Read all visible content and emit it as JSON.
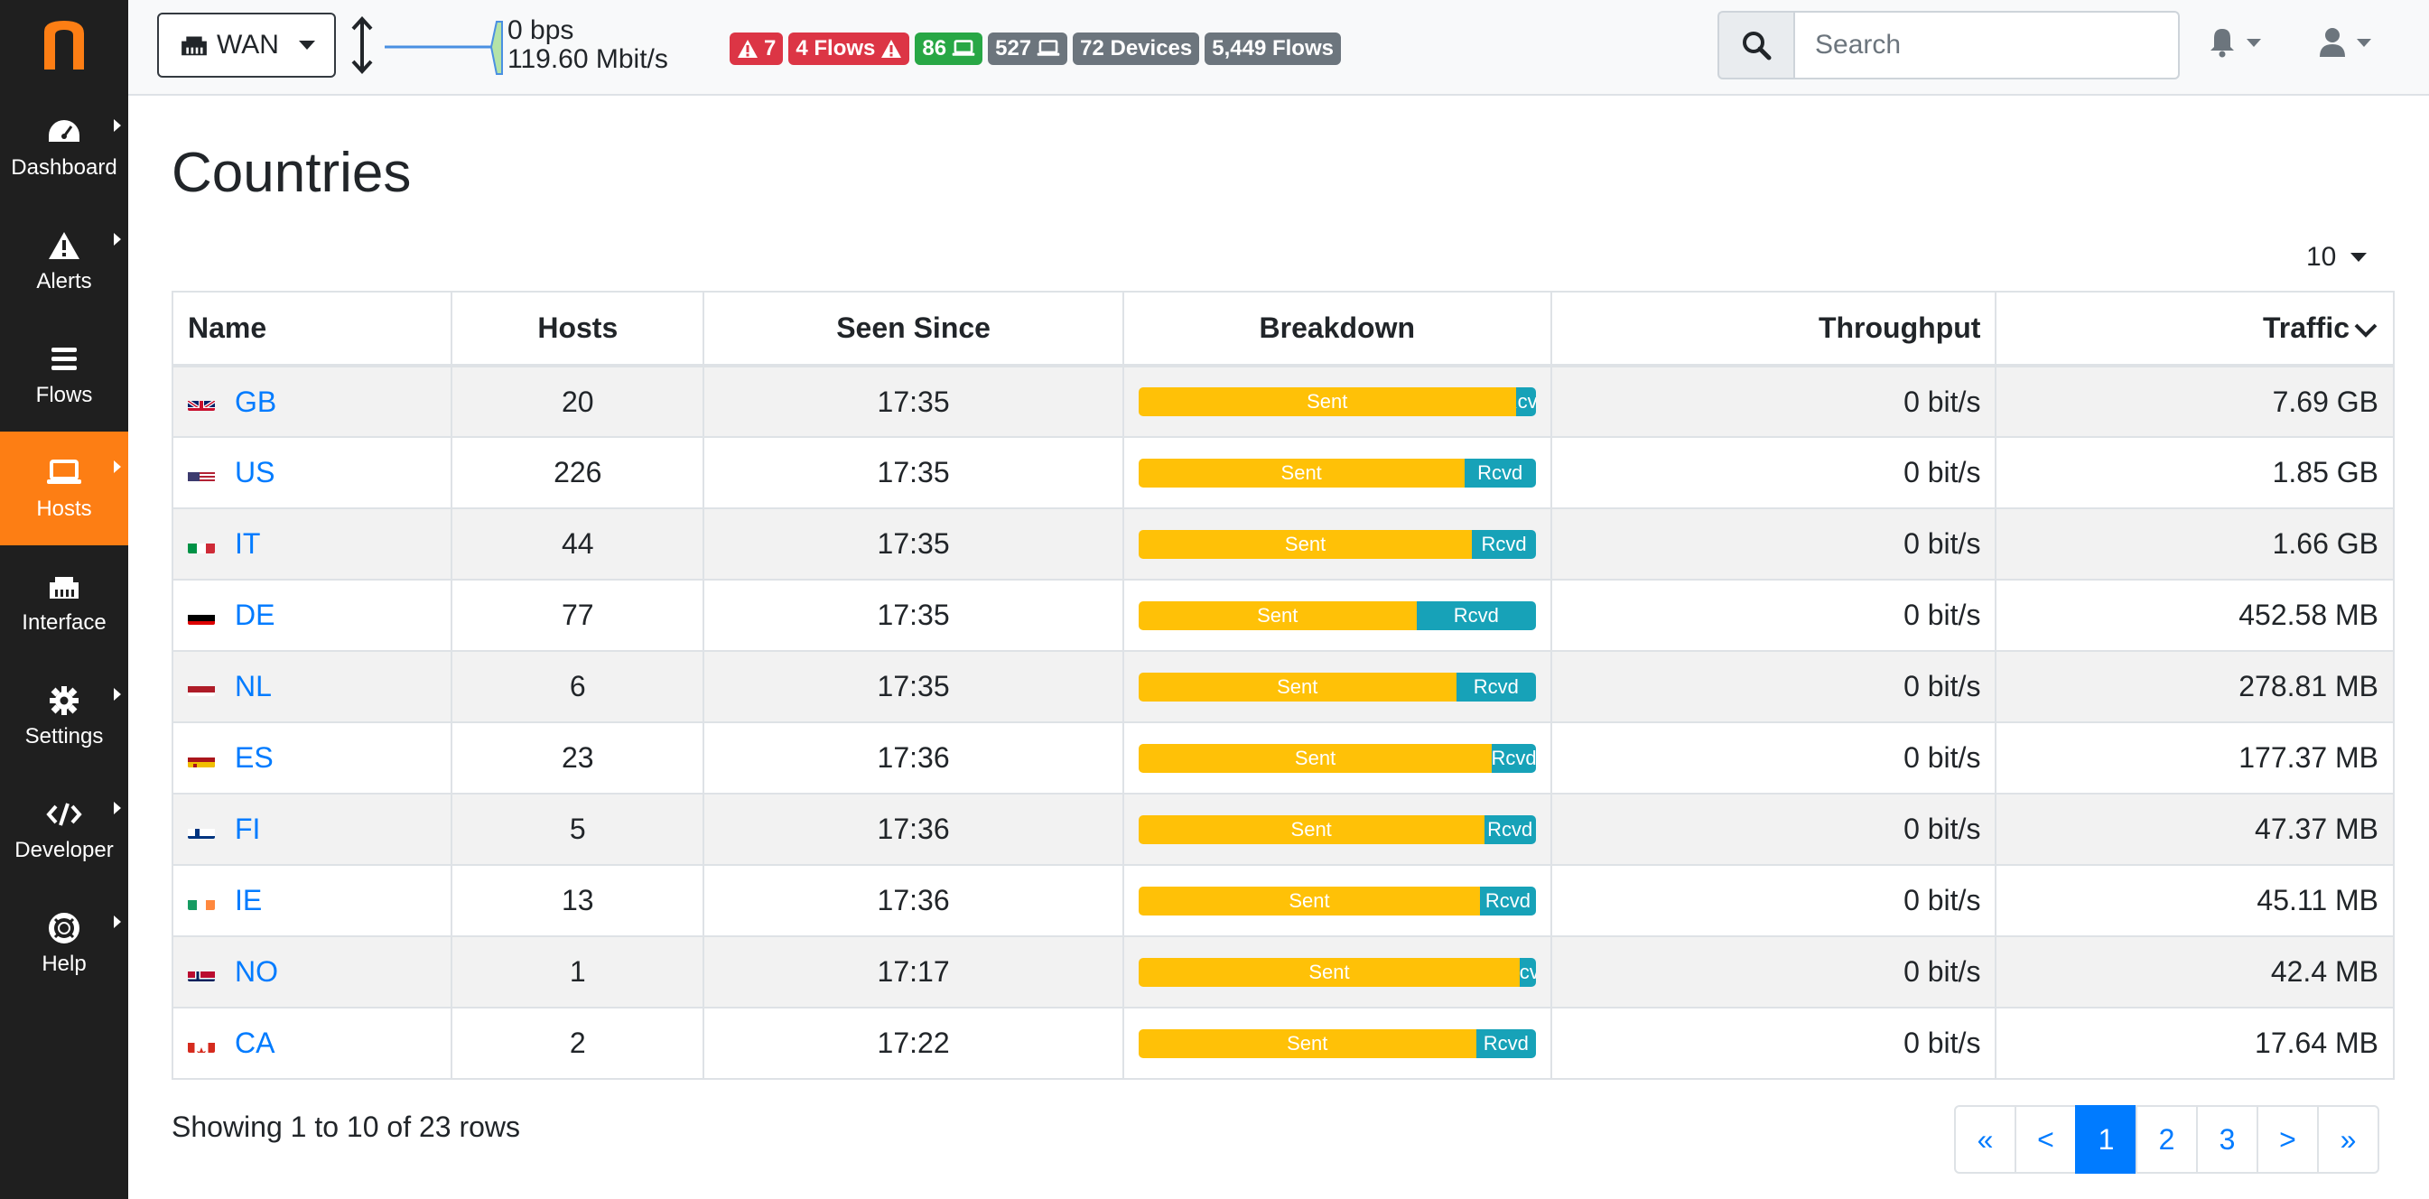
{
  "sidebar": {
    "logo_letter": "n",
    "items": [
      {
        "label": "Dashboard",
        "icon": "tachometer-icon",
        "has_submenu": true
      },
      {
        "label": "Alerts",
        "icon": "warning-icon",
        "has_submenu": true
      },
      {
        "label": "Flows",
        "icon": "bars-icon",
        "has_submenu": false
      },
      {
        "label": "Hosts",
        "icon": "laptop-icon",
        "has_submenu": true,
        "active": true
      },
      {
        "label": "Interface",
        "icon": "ethernet-icon",
        "has_submenu": false
      },
      {
        "label": "Settings",
        "icon": "gear-icon",
        "has_submenu": true
      },
      {
        "label": "Developer",
        "icon": "code-icon",
        "has_submenu": true
      },
      {
        "label": "Help",
        "icon": "life-ring-icon",
        "has_submenu": true
      }
    ]
  },
  "topbar": {
    "interface_label": "WAN",
    "upload_rate": "0 bps",
    "download_rate": "119.60 Mbit/s",
    "badges": {
      "alerts": "7",
      "flows_alerts": "4 Flows",
      "local_hosts": "86",
      "remote_hosts": "527",
      "devices": "72 Devices",
      "flows": "5,449 Flows"
    },
    "search_placeholder": "Search"
  },
  "page": {
    "title": "Countries",
    "per_page": "10"
  },
  "table": {
    "headers": {
      "name": "Name",
      "hosts": "Hosts",
      "seen_since": "Seen Since",
      "breakdown": "Breakdown",
      "throughput": "Throughput",
      "traffic": "Traffic"
    },
    "sent_label": "Sent",
    "rcvd_label": "Rcvd",
    "rows": [
      {
        "code": "GB",
        "hosts": "20",
        "seen": "17:35",
        "sent_pct": 95,
        "throughput": "0 bit/s",
        "traffic": "7.69 GB"
      },
      {
        "code": "US",
        "hosts": "226",
        "seen": "17:35",
        "sent_pct": 82,
        "throughput": "0 bit/s",
        "traffic": "1.85 GB"
      },
      {
        "code": "IT",
        "hosts": "44",
        "seen": "17:35",
        "sent_pct": 84,
        "throughput": "0 bit/s",
        "traffic": "1.66 GB"
      },
      {
        "code": "DE",
        "hosts": "77",
        "seen": "17:35",
        "sent_pct": 70,
        "throughput": "0 bit/s",
        "traffic": "452.58 MB"
      },
      {
        "code": "NL",
        "hosts": "6",
        "seen": "17:35",
        "sent_pct": 80,
        "throughput": "0 bit/s",
        "traffic": "278.81 MB"
      },
      {
        "code": "ES",
        "hosts": "23",
        "seen": "17:36",
        "sent_pct": 89,
        "throughput": "0 bit/s",
        "traffic": "177.37 MB"
      },
      {
        "code": "FI",
        "hosts": "5",
        "seen": "17:36",
        "sent_pct": 87,
        "throughput": "0 bit/s",
        "traffic": "47.37 MB"
      },
      {
        "code": "IE",
        "hosts": "13",
        "seen": "17:36",
        "sent_pct": 86,
        "throughput": "0 bit/s",
        "traffic": "45.11 MB"
      },
      {
        "code": "NO",
        "hosts": "1",
        "seen": "17:17",
        "sent_pct": 96,
        "throughput": "0 bit/s",
        "traffic": "42.4 MB"
      },
      {
        "code": "CA",
        "hosts": "2",
        "seen": "17:22",
        "sent_pct": 85,
        "throughput": "0 bit/s",
        "traffic": "17.64 MB"
      }
    ]
  },
  "footer": {
    "showing_text": "Showing 1 to 10 of 23 rows",
    "pages": [
      "«",
      "<",
      "1",
      "2",
      "3",
      ">",
      "»"
    ],
    "active_page": "1"
  },
  "colors": {
    "brand_orange": "#fd7e14",
    "link_blue": "#007bff",
    "sent_yellow": "#ffc107",
    "rcvd_teal": "#17a2b8"
  }
}
